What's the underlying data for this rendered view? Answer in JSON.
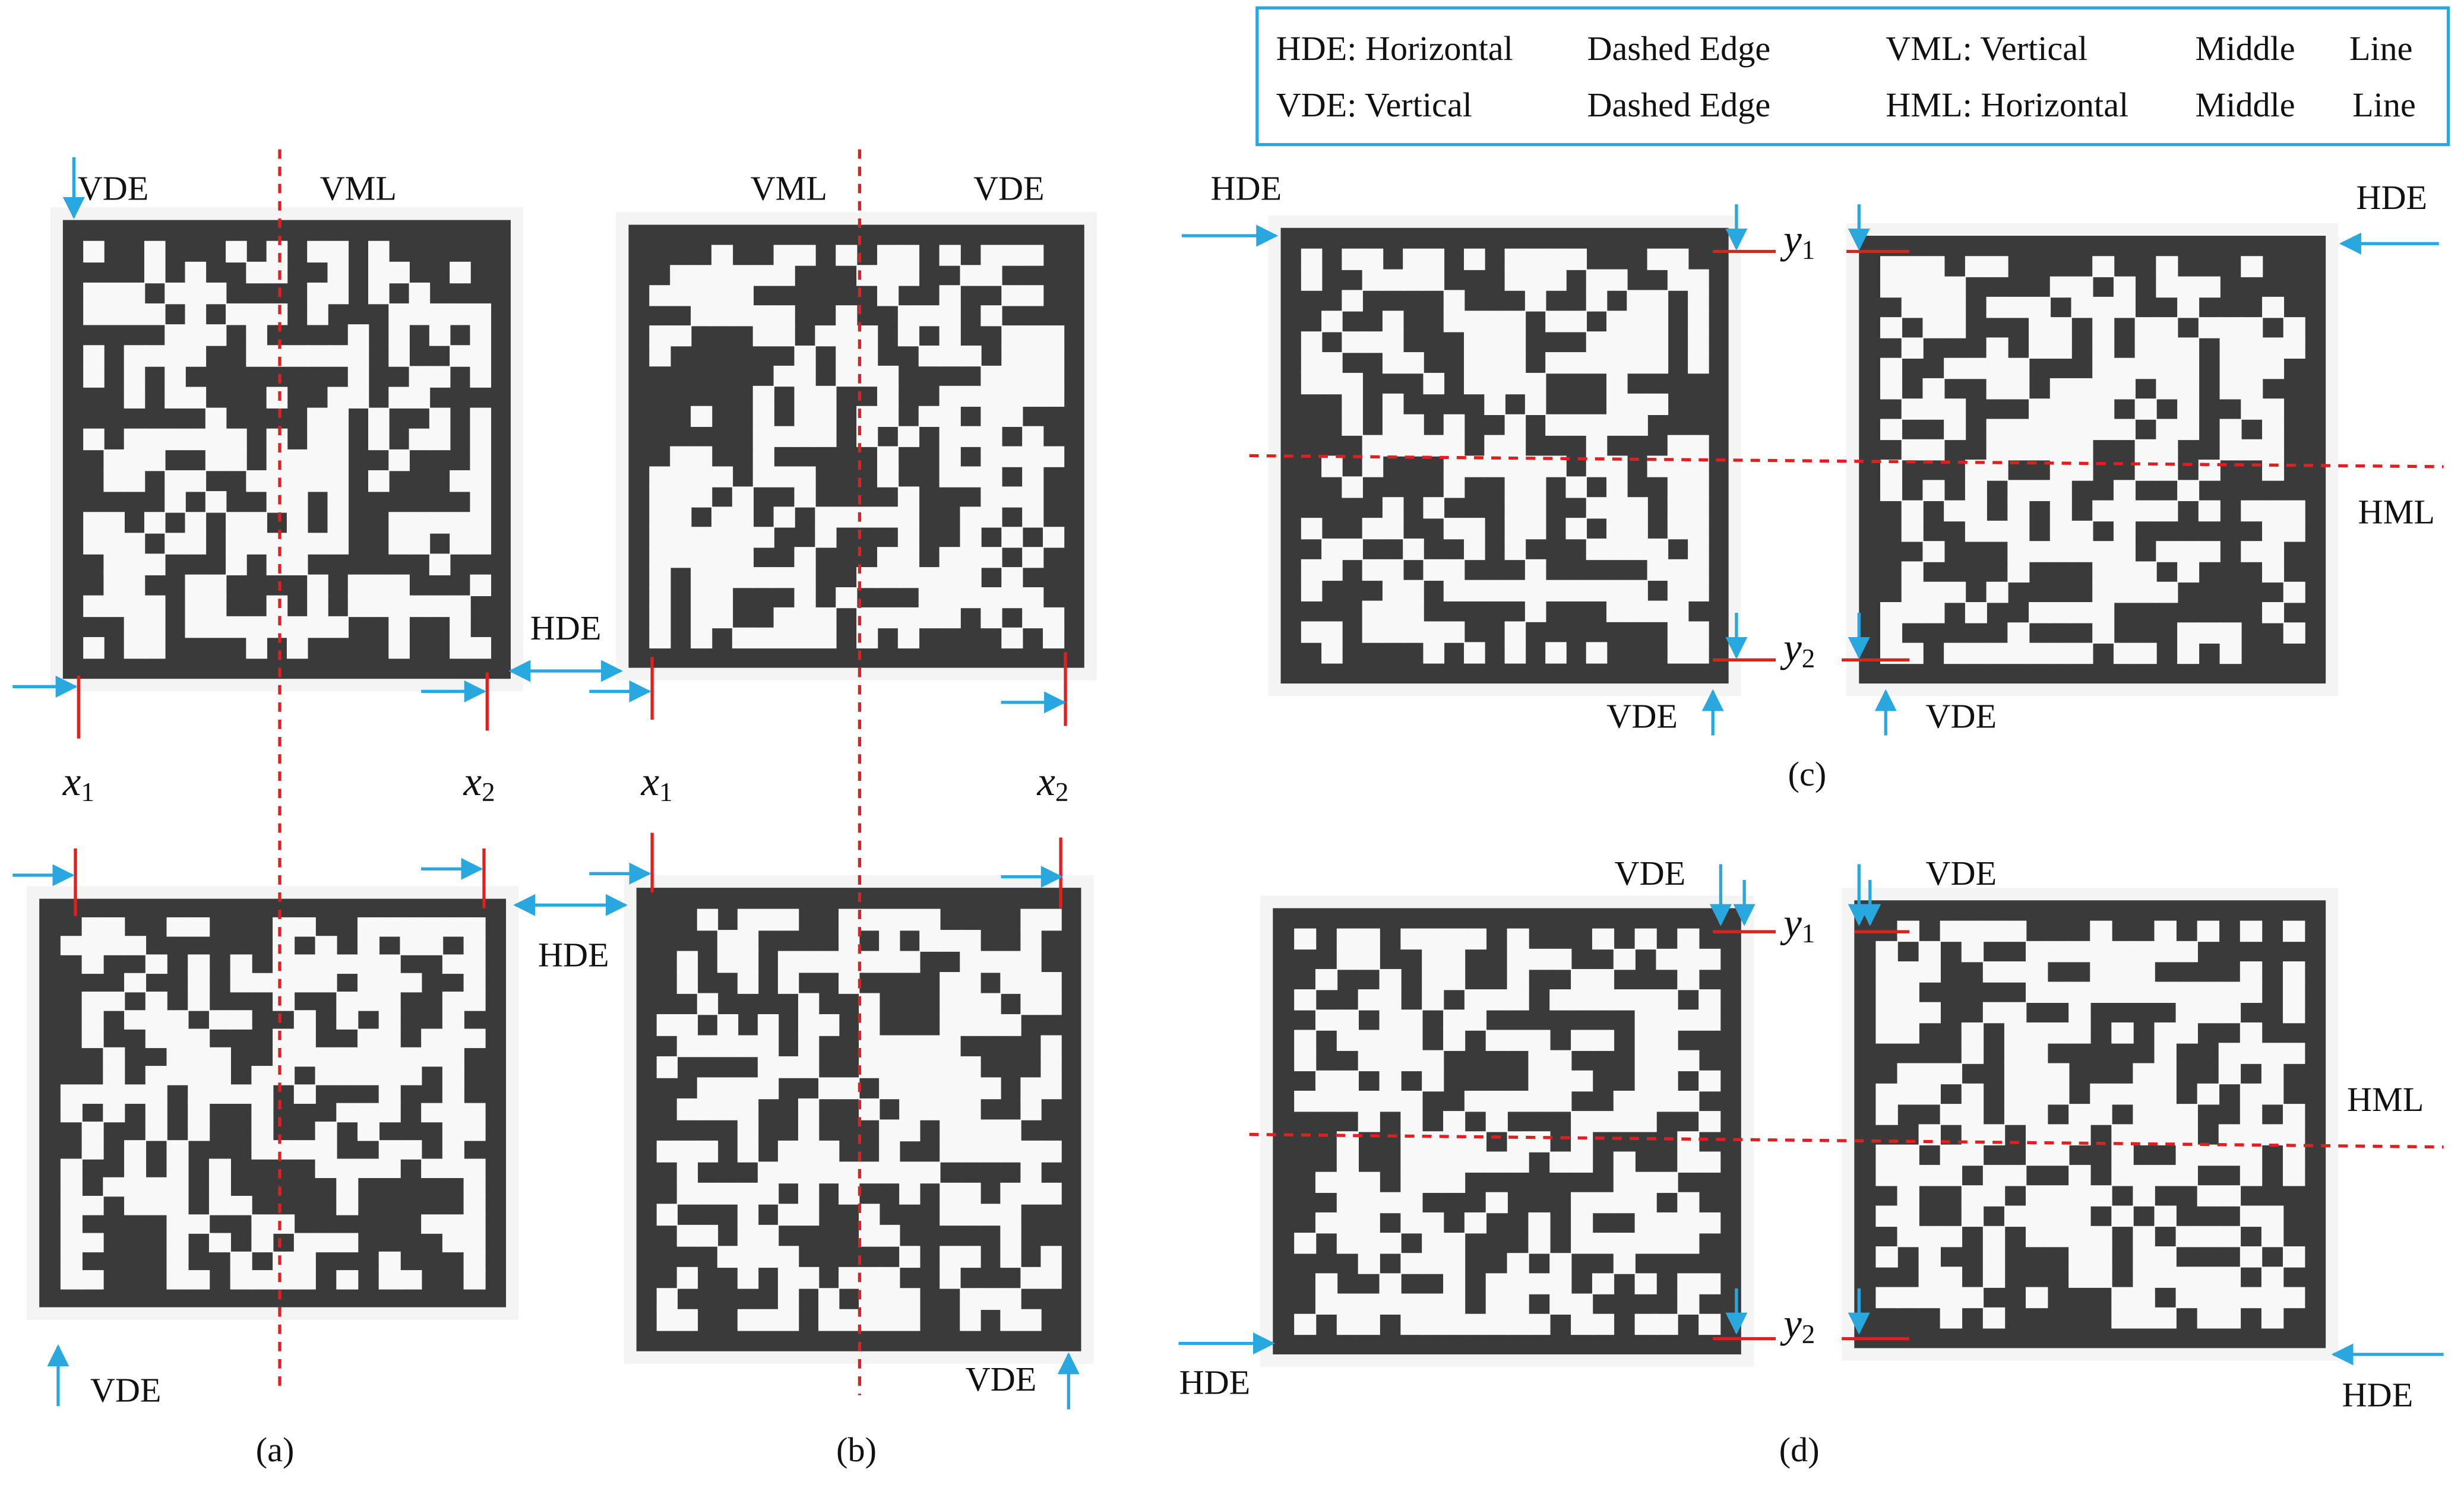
{
  "legend": {
    "rows": [
      [
        "HDE: Horizontal",
        "Dashed Edge",
        "VML: Vertical",
        "Middle",
        "Line"
      ],
      [
        "VDE: Vertical",
        "Dashed Edge",
        "HML: Horizontal",
        "Middle",
        "Line"
      ]
    ]
  },
  "panels": [
    {
      "caption": "(a)",
      "labels": [
        "VDE",
        "VML",
        {
          "var": "x",
          "sub": "1"
        },
        {
          "var": "x",
          "sub": "2"
        },
        "VDE",
        "HDE",
        "HDE"
      ]
    },
    {
      "caption": "(b)",
      "labels": [
        "VML",
        "VDE",
        {
          "var": "x",
          "sub": "1"
        },
        {
          "var": "x",
          "sub": "2"
        },
        "VDE"
      ]
    },
    {
      "caption": "(c)",
      "labels": [
        "HDE",
        "HDE",
        {
          "var": "y",
          "sub": "1"
        },
        {
          "var": "y",
          "sub": "2"
        },
        "HML",
        "VDE",
        "VDE"
      ]
    },
    {
      "caption": "(d)",
      "labels": [
        "VDE",
        "VDE",
        {
          "var": "y",
          "sub": "1"
        },
        {
          "var": "y",
          "sub": "2"
        },
        "HML",
        "HDE",
        "HDE"
      ]
    }
  ]
}
